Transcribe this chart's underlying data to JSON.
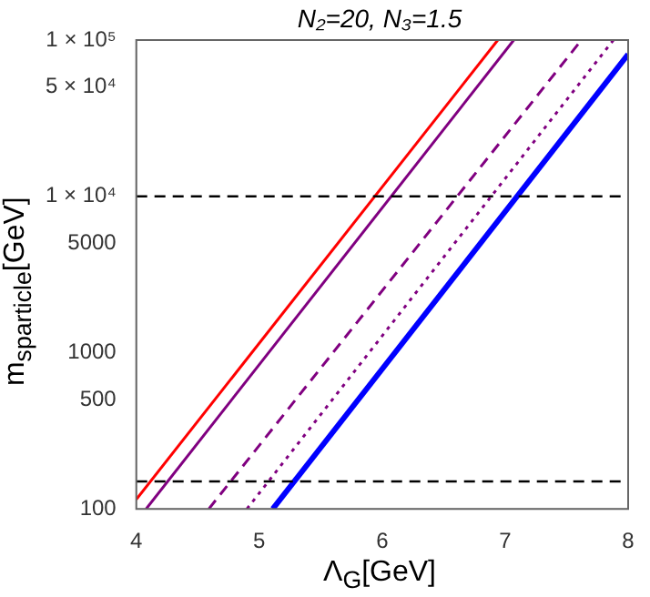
{
  "chart_data": {
    "type": "line",
    "title": "N₂=20, N₃=1.5",
    "xlabel": "Λ$_{G}$[GeV]",
    "ylabel": "m$_{sparticle}$[GeV]",
    "series": [
      {
        "color": "#ff0000",
        "x": [
          4,
          6.94
        ],
        "values": [
          115,
          100000
        ],
        "line_style": "solid"
      },
      {
        "color": "#800080",
        "x": [
          4.08,
          7.07
        ],
        "values": [
          100,
          100000
        ],
        "line_style": "solid"
      },
      {
        "color": "#800080",
        "x": [
          4.59,
          7.62
        ],
        "values": [
          100,
          100000
        ],
        "line_style": "dashed"
      },
      {
        "color": "#800080",
        "x": [
          4.9,
          7.88
        ],
        "values": [
          100,
          100000
        ],
        "line_style": "dotted"
      },
      {
        "color": "#0000ff",
        "x": [
          5.11,
          8
        ],
        "values": [
          100,
          81000
        ],
        "line_style": "solid"
      }
    ],
    "ref_lines": [
      {
        "axis": "y",
        "value": 10000,
        "color": "#000000",
        "line_style": "dashed"
      },
      {
        "axis": "y",
        "value": 150,
        "color": "#000000",
        "line_style": "dashed"
      }
    ],
    "xlim": [
      4,
      8
    ],
    "xticks": [
      4,
      5,
      6,
      7,
      8
    ],
    "ylim": [
      100,
      100000
    ],
    "yticks": [
      100,
      500,
      1000,
      5000,
      {
        "value": 10000,
        "label": "1 × 10⁴"
      },
      {
        "value": 50000,
        "label": "5 × 10⁴"
      },
      {
        "value": 100000,
        "label": "1 × 10⁵"
      }
    ],
    "log": "y",
    "grid": false,
    "legend": false,
    "marker": "none"
  }
}
